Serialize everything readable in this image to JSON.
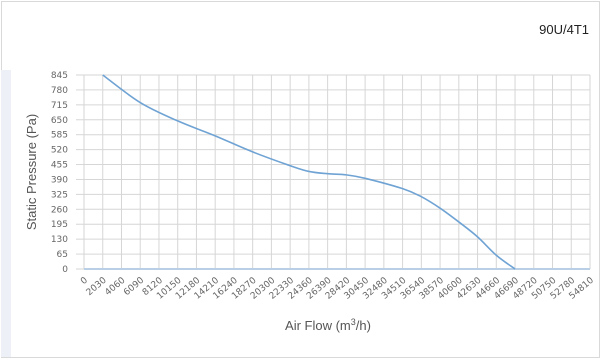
{
  "header": {
    "model": "90U/4T1"
  },
  "chart_data": {
    "type": "line",
    "title": "",
    "xlabel": "Air Flow (m",
    "xlabel_sup": "3",
    "xlabel_end": "/h)",
    "ylabel": "Static Pressure (Pa)",
    "x_ticks": [
      "0",
      "2030",
      "4060",
      "6090",
      "8120",
      "10150",
      "12180",
      "14210",
      "16240",
      "18270",
      "20300",
      "22330",
      "24360",
      "26390",
      "28420",
      "30450",
      "32480",
      "34510",
      "36540",
      "38570",
      "40600",
      "42630",
      "44660",
      "46690",
      "48720",
      "50750",
      "52780",
      "54810"
    ],
    "y_ticks": [
      "845",
      "780",
      "715",
      "650",
      "585",
      "520",
      "455",
      "390",
      "325",
      "260",
      "195",
      "130",
      "65",
      "0"
    ],
    "xlim": [
      0,
      54810
    ],
    "ylim": [
      0,
      845
    ],
    "grid": true,
    "series": [
      {
        "color": "#6fa3d4",
        "x": [
          2030,
          6090,
          10150,
          14210,
          18270,
          22330,
          24360,
          26390,
          28420,
          30450,
          34510,
          36540,
          38570,
          40600,
          42630,
          44660,
          46690
        ],
        "y": [
          845,
          725,
          645,
          580,
          510,
          450,
          425,
          415,
          410,
          395,
          350,
          315,
          265,
          205,
          140,
          60,
          0
        ]
      }
    ]
  }
}
